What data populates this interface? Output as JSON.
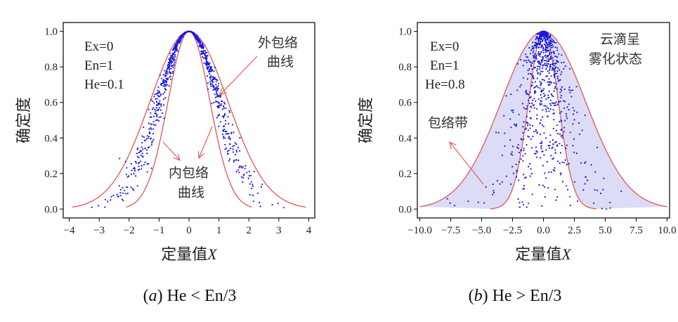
{
  "chart_data": [
    {
      "type": "scatter",
      "caption_letter": "a",
      "caption_text": "He < En/3",
      "xlabel_cn": "定量值",
      "xlabel_var": "X",
      "ylabel": "确定度",
      "xlim": [
        -4.2,
        4.2
      ],
      "ylim": [
        -0.05,
        1.05
      ],
      "xticks": [
        -4,
        -3,
        -2,
        -1,
        0,
        1,
        2,
        3,
        4
      ],
      "xtick_labels": [
        "−4",
        "−3",
        "−2",
        "−1",
        "0",
        "1",
        "2",
        "3",
        "4"
      ],
      "yticks": [
        0.0,
        0.2,
        0.4,
        0.6,
        0.8,
        1.0
      ],
      "ytick_labels": [
        "0.0",
        "0.2",
        "0.4",
        "0.6",
        "0.8",
        "1.0"
      ],
      "params": [
        "Ex=0",
        "En=1",
        "He=0.1"
      ],
      "annotations": [
        {
          "lines": [
            "外包络",
            "曲线"
          ],
          "points_to": [
            1.05,
            0.72
          ]
        },
        {
          "lines": [
            "内包络",
            "曲线"
          ],
          "points_to": [
            -1.05,
            0.3
          ]
        }
      ],
      "outer_envelope_sigma": 1.3,
      "inner_envelope_sigma": 0.7,
      "envelope_x_range": [
        -3.9,
        3.9
      ],
      "inner_x_range": [
        -2.1,
        2.1
      ],
      "band_fill": false,
      "drops": {
        "count": 900,
        "Ex": 0,
        "En": 1,
        "He": 0.1,
        "seed": 11
      },
      "colors": {
        "drops": "#1a1adf",
        "envelope": "#e06060",
        "band": "none"
      }
    },
    {
      "type": "scatter",
      "caption_letter": "b",
      "caption_text": "He > En/3",
      "xlabel_cn": "定量值",
      "xlabel_var": "X",
      "ylabel": "确定度",
      "xlim": [
        -10.2,
        10.2
      ],
      "ylim": [
        -0.05,
        1.05
      ],
      "xticks": [
        -10,
        -7.5,
        -5,
        -2.5,
        0,
        2.5,
        5,
        7.5,
        10
      ],
      "xtick_labels": [
        "−10.0",
        "−7.5",
        "−5.0",
        "−2.5",
        "0.0",
        "2.5",
        "5.0",
        "7.5",
        "10.0"
      ],
      "yticks": [
        0.0,
        0.2,
        0.4,
        0.6,
        0.8,
        1.0
      ],
      "ytick_labels": [
        "0.0",
        "0.2",
        "0.4",
        "0.6",
        "0.8",
        "1.0"
      ],
      "params": [
        "Ex=0",
        "En=1",
        "He=0.8"
      ],
      "annotations": [
        {
          "lines": [
            "云滴呈",
            "雾化状态"
          ],
          "points_to": null
        },
        {
          "lines": [
            "包络带"
          ],
          "points_to": [
            -7.7,
            0.38
          ]
        }
      ],
      "outer_envelope_sigma": 3.4,
      "inner_envelope_sigma": 1.2,
      "envelope_x_range": [
        -10,
        10
      ],
      "inner_x_range": [
        -4.3,
        4.3
      ],
      "band_fill": true,
      "drops": {
        "count": 900,
        "Ex": 0,
        "En": 1,
        "He": 0.8,
        "seed": 29
      },
      "colors": {
        "drops": "#1a1adf",
        "envelope": "#e06060",
        "band": "#dcdcf7"
      }
    }
  ]
}
